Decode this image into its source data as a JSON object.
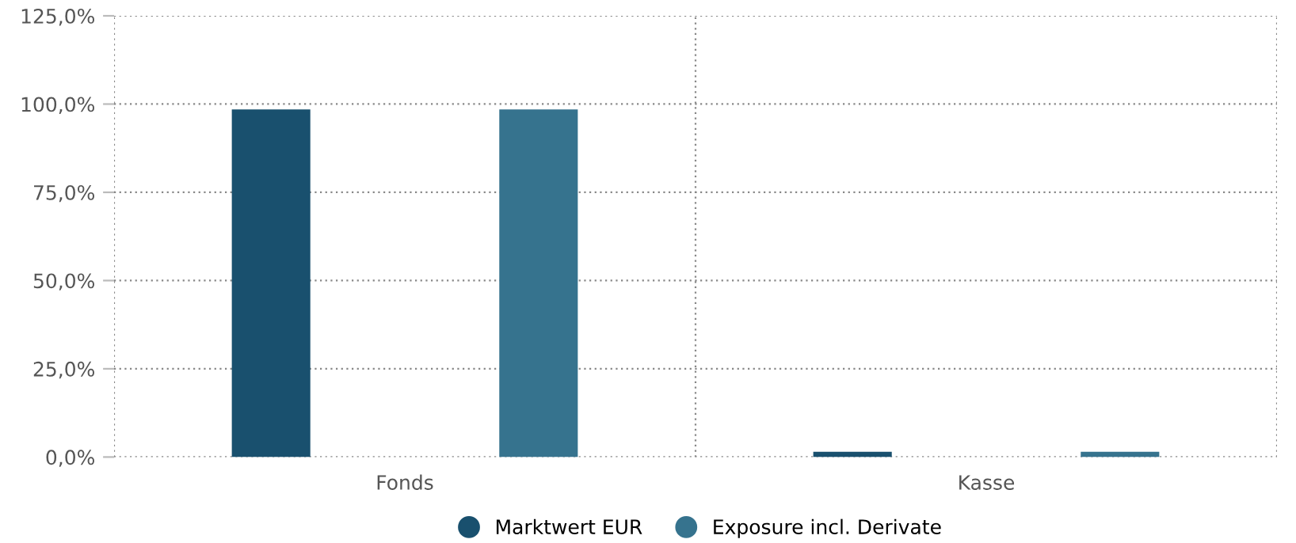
{
  "chart_data": {
    "type": "bar",
    "categories": [
      "Fonds",
      "Kasse"
    ],
    "series": [
      {
        "name": "Marktwert EUR",
        "color": "#19506e",
        "values": [
          98.5,
          1.5
        ]
      },
      {
        "name": "Exposure incl. Derivate",
        "color": "#36738e",
        "values": [
          98.5,
          1.5
        ]
      }
    ],
    "ylim": [
      0,
      125
    ],
    "yticks": [
      {
        "value": 0,
        "label": "0,0%"
      },
      {
        "value": 25,
        "label": "25,0%"
      },
      {
        "value": 50,
        "label": "50,0%"
      },
      {
        "value": 75,
        "label": "75,0%"
      },
      {
        "value": 100,
        "label": "100,0%"
      },
      {
        "value": 125,
        "label": "125,0%"
      }
    ],
    "grid": true,
    "legend": "bottom"
  }
}
